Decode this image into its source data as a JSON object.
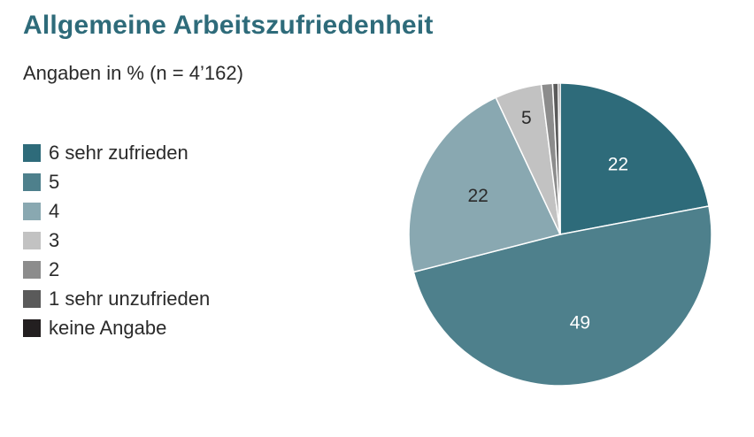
{
  "title": "Allgemeine Arbeitszufriedenheit",
  "subtitle": "Angaben in % (n = 4’162)",
  "chart_data": {
    "type": "pie",
    "title": "Allgemeine Arbeitszufriedenheit",
    "subtitle": "Angaben in % (n = 4’162)",
    "legend_position": "left",
    "start": "top, clockwise",
    "slices": [
      {
        "label": "6 sehr zufrieden",
        "value": 22,
        "color": "#2e6b7a",
        "data_label": "22",
        "label_color": "#ffffff"
      },
      {
        "label": "5",
        "value": 49,
        "color": "#4e808c",
        "data_label": "49",
        "label_color": "#ffffff"
      },
      {
        "label": "4",
        "value": 22,
        "color": "#89a8b1",
        "data_label": "22",
        "label_color": "#2a2a2a"
      },
      {
        "label": "3",
        "value": 5,
        "color": "#c2c2c2",
        "data_label": "5",
        "label_color": "#2a2a2a"
      },
      {
        "label": "2",
        "value": 1.2,
        "color": "#8c8c8c",
        "data_label": "",
        "label_color": "#2a2a2a"
      },
      {
        "label": "1 sehr unzufrieden",
        "value": 0.6,
        "color": "#5a5a5a",
        "data_label": "",
        "label_color": "#2a2a2a"
      },
      {
        "label": "keine Angabe",
        "value": 0.2,
        "color": "#231f20",
        "data_label": "",
        "label_color": "#2a2a2a"
      }
    ]
  }
}
